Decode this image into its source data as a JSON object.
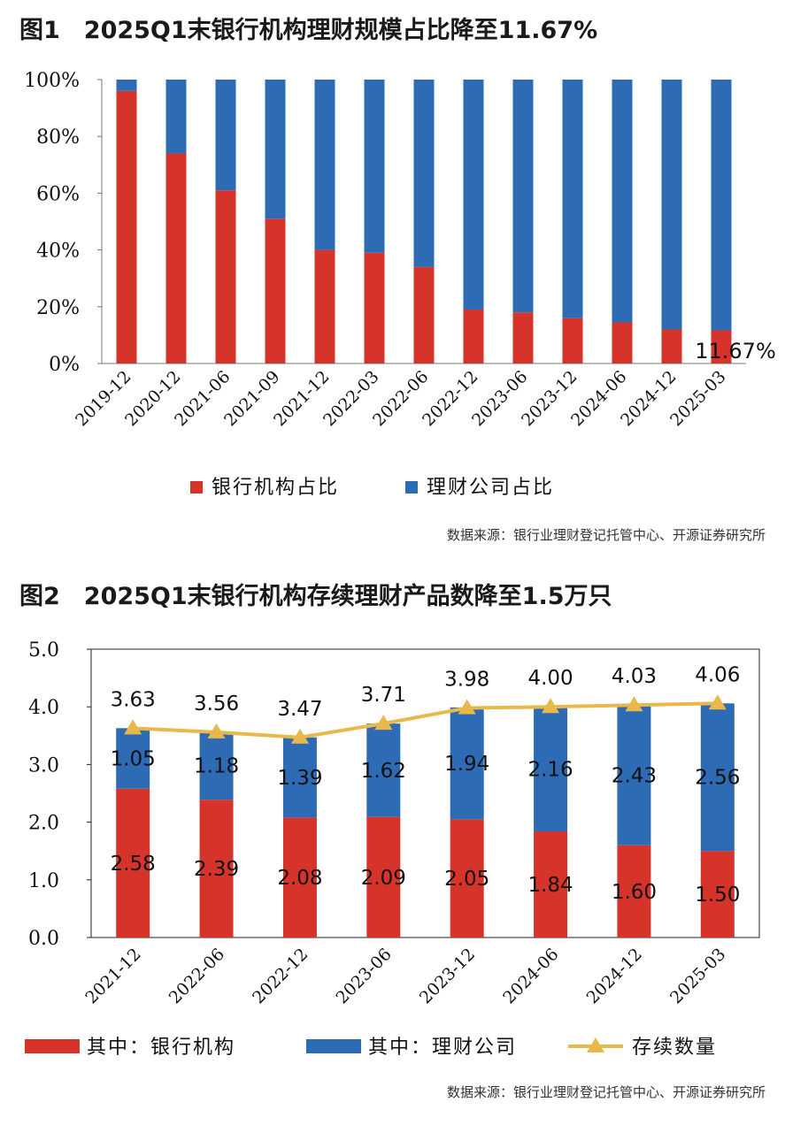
{
  "figure1": {
    "title": "图1　2025Q1末银行机构理财规模占比降至11.67%",
    "source": "数据来源：银行业理财登记托管中心、开源证券研究所",
    "chart_data": {
      "type": "bar",
      "stacked": true,
      "percent": true,
      "categories": [
        "2019-12",
        "2020-12",
        "2021-06",
        "2021-09",
        "2021-12",
        "2022-03",
        "2022-06",
        "2022-12",
        "2023-06",
        "2023-12",
        "2024-06",
        "2024-12",
        "2025-03"
      ],
      "series": [
        {
          "name": "银行机构占比",
          "color": "#d6342a",
          "values": [
            96,
            74,
            61,
            51,
            40,
            39,
            34,
            19,
            18,
            16,
            14.5,
            12,
            11.67
          ]
        },
        {
          "name": "理财公司占比",
          "color": "#2e6bb5",
          "values": [
            4,
            26,
            39,
            49,
            60,
            61,
            66,
            81,
            82,
            84,
            85.5,
            88,
            88.33
          ]
        }
      ],
      "yticks": [
        "0%",
        "20%",
        "40%",
        "60%",
        "80%",
        "100%"
      ],
      "ylim": [
        0,
        100
      ],
      "annotation": "11.67%",
      "legend_position": "bottom"
    }
  },
  "figure2": {
    "title": "图2　2025Q1末银行机构存续理财产品数降至1.5万只",
    "source": "数据来源：银行业理财登记托管中心、开源证券研究所",
    "chart_data": {
      "type": "bar",
      "stacked": true,
      "categories": [
        "2021-12",
        "2022-06",
        "2022-12",
        "2023-06",
        "2023-12",
        "2024-06",
        "2024-12",
        "2025-03"
      ],
      "series": [
        {
          "name": "其中：银行机构",
          "type": "bar",
          "color": "#d6342a",
          "values": [
            2.58,
            2.39,
            2.08,
            2.09,
            2.05,
            1.84,
            1.6,
            1.5
          ],
          "labels": [
            "2.58",
            "2.39",
            "2.08",
            "2.09",
            "2.05",
            "1.84",
            "1.60",
            "1.50"
          ]
        },
        {
          "name": "其中：理财公司",
          "type": "bar",
          "color": "#2e6bb5",
          "values": [
            1.05,
            1.18,
            1.39,
            1.62,
            1.94,
            2.16,
            2.43,
            2.56
          ],
          "labels": [
            "1.05",
            "1.18",
            "1.39",
            "1.62",
            "1.94",
            "2.16",
            "2.43",
            "2.56"
          ]
        },
        {
          "name": "存续数量",
          "type": "line",
          "color": "#e8b94a",
          "values": [
            3.63,
            3.56,
            3.47,
            3.71,
            3.98,
            4.0,
            4.03,
            4.06
          ],
          "labels": [
            "3.63",
            "3.56",
            "3.47",
            "3.71",
            "3.98",
            "4.00",
            "4.03",
            "4.06"
          ]
        }
      ],
      "yticks": [
        "0.0",
        "1.0",
        "2.0",
        "3.0",
        "4.0",
        "5.0"
      ],
      "ylim": [
        0,
        5
      ],
      "legend_position": "bottom"
    }
  }
}
